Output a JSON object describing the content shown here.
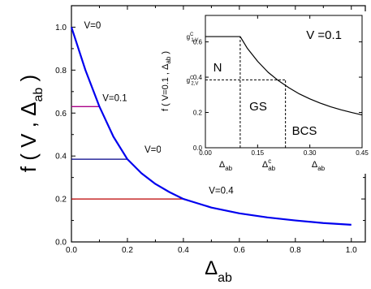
{
  "chart_data": [
    {
      "type": "line",
      "xlabel": "Δ",
      "xlabel_sub": "ab",
      "ylabel_prefix": "f ( V , Δ",
      "ylabel_sub": "ab",
      "ylabel_suffix": " )",
      "xlim": [
        0,
        1.05
      ],
      "ylim": [
        0,
        1.1
      ],
      "xticks": [
        "0.0",
        "0.2",
        "0.4",
        "0.6",
        "0.8",
        "1.0"
      ],
      "yticks": [
        "0.0",
        "0.2",
        "0.4",
        "0.6",
        "0.8",
        "1.0"
      ],
      "series": [
        {
          "color": "#0000ee",
          "x": [
            0,
            0.05,
            0.1,
            0.15,
            0.2,
            0.25,
            0.3,
            0.35,
            0.4,
            0.45,
            0.5,
            0.6,
            0.7,
            0.8,
            0.9,
            1.0
          ],
          "y": [
            1.0,
            0.8,
            0.63,
            0.49,
            0.385,
            0.32,
            0.27,
            0.232,
            0.2,
            0.18,
            0.16,
            0.133,
            0.114,
            0.1,
            0.088,
            0.08
          ]
        }
      ],
      "hlines": [
        {
          "y": 0.63,
          "x_end": 0.1,
          "color": "#aa0088"
        },
        {
          "y": 0.385,
          "x_end": 0.2,
          "color": "#000088"
        },
        {
          "y": 0.2,
          "x_end": 0.4,
          "color": "#bb0000"
        }
      ],
      "annotations": [
        {
          "text": "V=0",
          "x": 0.075,
          "y": 0.995
        },
        {
          "text": "V=0.1",
          "x": 0.155,
          "y": 0.655
        },
        {
          "text": "V=0.2",
          "x": 0.305,
          "y": 0.415
        },
        {
          "text": "V=0.4",
          "x": 0.535,
          "y": 0.225
        }
      ]
    },
    {
      "type": "line",
      "title": "V =0.1",
      "ylabel_prefix": "f ( V=0.1 , Δ",
      "ylabel_sub": "ab",
      "ylabel_suffix": " )",
      "xlim": [
        0,
        0.45
      ],
      "ylim": [
        0,
        0.75
      ],
      "xticks": [
        "0.00",
        "0.15",
        "0.30",
        "0.45"
      ],
      "yticks": [
        "0.0",
        "0.2",
        "0.4",
        "0.6"
      ],
      "ytick_labels_named": [
        {
          "value": 0.63,
          "g": "g",
          "sup": "C",
          "sub": "1,V"
        },
        {
          "value": 0.385,
          "g": "g",
          "sup": "C",
          "sub": "2,V"
        }
      ],
      "series": [
        {
          "color": "#000000",
          "x": [
            0,
            0.1,
            0.12,
            0.15,
            0.18,
            0.21,
            0.24,
            0.27,
            0.3,
            0.33,
            0.36,
            0.39,
            0.42,
            0.45
          ],
          "y": [
            0.63,
            0.63,
            0.565,
            0.49,
            0.428,
            0.38,
            0.34,
            0.305,
            0.277,
            0.253,
            0.232,
            0.215,
            0.2,
            0.186
          ]
        }
      ],
      "dashed_lines": [
        {
          "x": [
            0.1,
            0.1
          ],
          "y": [
            0,
            0.63
          ]
        },
        {
          "x": [
            0,
            0.23
          ],
          "y": [
            0.385,
            0.385
          ]
        },
        {
          "x": [
            0.23,
            0.23
          ],
          "y": [
            0,
            0.385
          ]
        }
      ],
      "regions": [
        "N",
        "GS",
        "BCS"
      ],
      "bottom_labels": [
        {
          "base": "Δ",
          "sub": "ab",
          "sup": ""
        },
        {
          "base": "Δ",
          "sub": "ab",
          "sup": "c"
        },
        {
          "base": "Δ",
          "sub": "ab",
          "sup": ""
        }
      ]
    }
  ]
}
